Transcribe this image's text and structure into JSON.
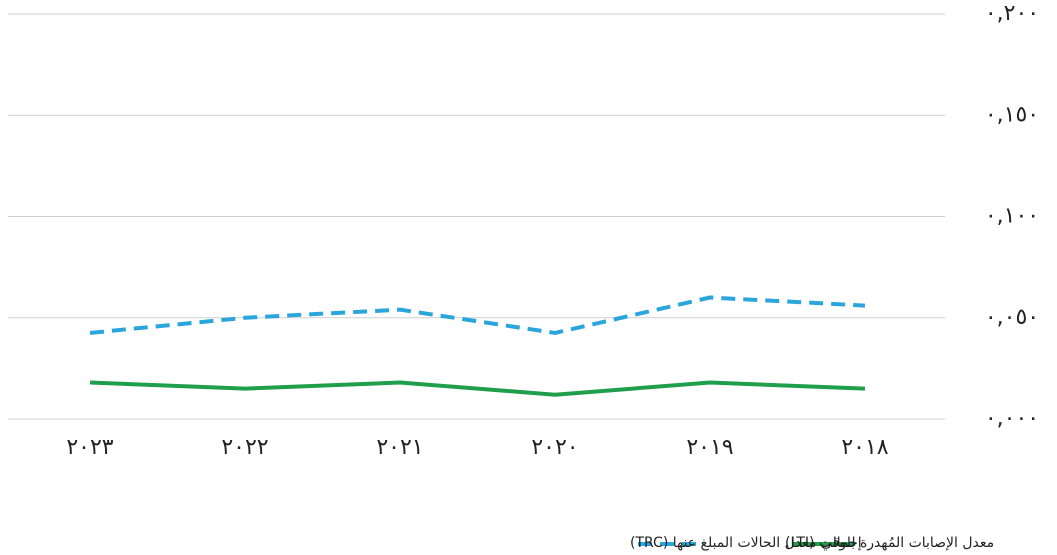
{
  "chart_data": {
    "type": "line",
    "categories": [
      "٢٠٢٣",
      "٢٠٢٢",
      "٢٠٢١",
      "٢٠٢٠",
      "٢٠١٩",
      "٢٠١٨"
    ],
    "series": [
      {
        "name": "معدل الإصابات المُهدرة للوقت (LTI)",
        "color": "#1f9e4b",
        "dash": false,
        "values": [
          0.018,
          0.015,
          0.018,
          0.012,
          0.018,
          0.015
        ]
      },
      {
        "name": "إجمالي معدل الحالات المبلغ عنها (TRC)",
        "color": "#2aa6dc",
        "dash": true,
        "values": [
          0.0425,
          0.05,
          0.054,
          0.0425,
          0.06,
          0.056
        ]
      }
    ],
    "ylim": [
      0,
      0.2
    ],
    "yticks": [
      {
        "value": 0,
        "label": "٠,٠٠٠"
      },
      {
        "value": 0.05,
        "label": "٠,٠٥٠"
      },
      {
        "value": 0.1,
        "label": "٠,١٠٠"
      },
      {
        "value": 0.15,
        "label": "٠,١٥٠"
      },
      {
        "value": 0.2,
        "label": "٠,٢٠٠"
      }
    ],
    "grid": true
  }
}
